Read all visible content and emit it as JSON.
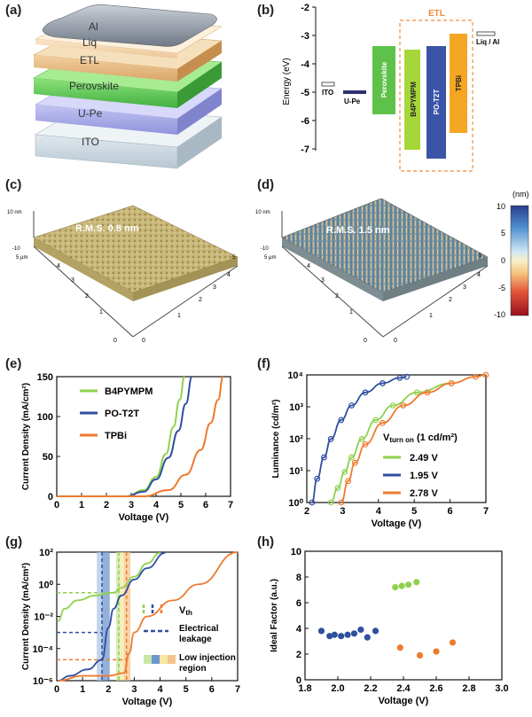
{
  "panel_labels": [
    "(a)",
    "(b)",
    "(c)",
    "(d)",
    "(e)",
    "(f)",
    "(g)",
    "(h)"
  ],
  "colors": {
    "green": "#8fd14f",
    "blue": "#2f4f9f",
    "orange": "#ee7a2e",
    "perovskite": "#5ec24a",
    "b4pympm": "#a6d73a",
    "pot2t": "#3a55a8",
    "tpbi": "#f5a623",
    "etl_box": "#f28c3a"
  },
  "panel_a": {
    "layers": [
      "Al",
      "Liq",
      "ETL",
      "Perovskite",
      "U-Pe",
      "ITO"
    ]
  },
  "panel_b": {
    "ylabel": "Energy (eV)",
    "yticks": [
      "-2",
      "-3",
      "-4",
      "-5",
      "-6",
      "-7"
    ],
    "etl_label": "ETL",
    "labels": {
      "ito": "ITO",
      "upe": "U-Pe",
      "perovskite": "Perovskite",
      "b4pympm": "B4PYMPM",
      "pot2t": "PO-T2T",
      "tpbi": "TPBi",
      "liq_al": "Liq / Al"
    }
  },
  "panel_c": {
    "rms": "R.M.S. 0.8 nm",
    "z_top": "10 nm",
    "z_bot": "-10",
    "x_ticks": [
      "0",
      "1",
      "2",
      "3",
      "4",
      "5 µm"
    ],
    "y_ticks": [
      "0",
      "1",
      "2",
      "3",
      "4",
      "5"
    ]
  },
  "panel_d": {
    "rms": "R.M.S. 1.5 nm",
    "z_top": "10 nm",
    "z_bot": "-10",
    "x_ticks": [
      "0",
      "1",
      "2",
      "3",
      "4",
      "5 µm"
    ],
    "y_ticks": [
      "0",
      "1",
      "2",
      "3",
      "4",
      "5"
    ]
  },
  "colorbar": {
    "unit": "(nm)",
    "ticks": [
      "10",
      "5",
      "0",
      "-5",
      "-10"
    ]
  },
  "chart_data": [
    {
      "panel": "e",
      "type": "line",
      "xlabel": "Voltage (V)",
      "ylabel": "Current Density (mA/cm²)",
      "xlim": [
        0,
        7
      ],
      "ylim": [
        0,
        155
      ],
      "xticks": [
        "0",
        "1",
        "2",
        "3",
        "4",
        "5",
        "6",
        "7"
      ],
      "yticks": [
        "0",
        "50",
        "100",
        "150"
      ],
      "series": [
        {
          "name": "B4PYMPM",
          "color": "#8fd14f",
          "x": [
            0,
            2.8,
            3.5,
            4.0,
            4.4,
            4.7,
            4.95,
            5.15
          ],
          "y": [
            0,
            0,
            8,
            25,
            55,
            90,
            125,
            155
          ]
        },
        {
          "name": "PO-T2T",
          "color": "#2f4f9f",
          "x": [
            0,
            2.8,
            3.5,
            4.0,
            4.5,
            4.9,
            5.2,
            5.45
          ],
          "y": [
            0,
            0,
            6,
            22,
            50,
            85,
            120,
            155
          ]
        },
        {
          "name": "TPBi",
          "color": "#ee7a2e",
          "x": [
            0,
            3.5,
            4.5,
            5.2,
            5.8,
            6.2,
            6.5,
            6.7
          ],
          "y": [
            0,
            0,
            8,
            28,
            60,
            95,
            125,
            155
          ]
        }
      ]
    },
    {
      "panel": "f",
      "type": "line",
      "xlabel": "Voltage (V)",
      "ylabel": "Luminance (cd/m²)",
      "yscale": "log",
      "xlim": [
        1.8,
        7
      ],
      "ylim": [
        1,
        15000
      ],
      "xticks": [
        "2",
        "3",
        "4",
        "5",
        "6",
        "7"
      ],
      "yticks": [
        "10⁰",
        "10¹",
        "10²",
        "10³",
        "10⁴"
      ],
      "legend_title": "V",
      "legend_title_sub": "turn on",
      "legend_title_rest": " (1 cd/m²)",
      "series": [
        {
          "name": "2.49 V",
          "color": "#8fd14f",
          "x": [
            2.5,
            2.7,
            2.9,
            3.1,
            3.4,
            3.8,
            4.3,
            5.0,
            6.0
          ],
          "y": [
            1,
            3,
            10,
            30,
            120,
            500,
            1500,
            4000,
            8000
          ]
        },
        {
          "name": "1.95 V",
          "color": "#2f4f9f",
          "x": [
            1.95,
            2.1,
            2.3,
            2.5,
            2.8,
            3.1,
            3.5,
            4.0,
            4.5,
            4.7
          ],
          "y": [
            1,
            6,
            30,
            120,
            500,
            1500,
            4000,
            8000,
            12000,
            13000
          ]
        },
        {
          "name": "2.78 V",
          "color": "#ee7a2e",
          "x": [
            2.8,
            3.0,
            3.2,
            3.5,
            4.0,
            4.6,
            5.3,
            6.0,
            6.7,
            7.0
          ],
          "y": [
            1,
            5,
            20,
            80,
            400,
            1500,
            4000,
            8000,
            13000,
            15000
          ]
        }
      ]
    },
    {
      "panel": "g",
      "type": "line",
      "xlabel": "Voltage (V)",
      "ylabel": "Current Density (mA/cm²)",
      "yscale": "log",
      "xlim": [
        0,
        7
      ],
      "ylim": [
        1e-06,
        100
      ],
      "xticks": [
        "0",
        "1",
        "2",
        "3",
        "4",
        "5",
        "6",
        "7"
      ],
      "yticks": [
        "10⁻⁶",
        "10⁻⁴",
        "10⁻²",
        "10⁰",
        "10²"
      ],
      "annotations": {
        "vth": "V",
        "vth_sub": "th",
        "leak": "Electrical\nleakage",
        "low": "Low injection\nregion"
      },
      "series": [
        {
          "name": "B4PYMPM",
          "color": "#8fd14f",
          "x": [
            0.05,
            0.3,
            0.8,
            1.5,
            2.2,
            2.5,
            3.0,
            3.5,
            4.0
          ],
          "y": [
            0.005,
            0.03,
            0.1,
            0.2,
            0.3,
            0.6,
            3,
            20,
            90
          ]
        },
        {
          "name": "PO-T2T",
          "color": "#2f4f9f",
          "x": [
            0.05,
            0.5,
            1.2,
            1.75,
            2.0,
            2.2,
            2.5,
            3.0,
            3.5,
            4.2
          ],
          "y": [
            1e-06,
            2e-06,
            5e-06,
            2e-05,
            0.002,
            0.03,
            0.2,
            2,
            10,
            90
          ]
        },
        {
          "name": "TPBi",
          "color": "#ee7a2e",
          "x": [
            0.05,
            1.0,
            2.0,
            2.6,
            2.8,
            3.0,
            3.5,
            4.5,
            5.5,
            7.0
          ],
          "y": [
            1e-06,
            2e-06,
            2e-06,
            3e-06,
            5e-05,
            0.001,
            0.01,
            0.1,
            1,
            100
          ]
        }
      ],
      "vth_lines": [
        {
          "color": "#2f4f9f",
          "x": 1.75,
          "y_h": 0.001
        },
        {
          "color": "#8fd14f",
          "x": 2.4,
          "y_h": 0.3
        },
        {
          "color": "#ee7a2e",
          "x": 2.7,
          "y_h": 2e-05
        }
      ]
    },
    {
      "panel": "h",
      "type": "scatter",
      "xlabel": "Voltage (V)",
      "ylabel": "Ideal Factor (a.u.)",
      "xlim": [
        1.8,
        3.0
      ],
      "ylim": [
        0,
        10
      ],
      "xticks": [
        "1.8",
        "2.0",
        "2.2",
        "2.4",
        "2.6",
        "2.8",
        "3.0"
      ],
      "yticks": [
        "0",
        "2",
        "4",
        "6",
        "8",
        "10"
      ],
      "series": [
        {
          "name": "B4PYMPM",
          "color": "#8fd14f",
          "x": [
            2.35,
            2.39,
            2.43,
            2.48
          ],
          "y": [
            7.2,
            7.3,
            7.4,
            7.6
          ]
        },
        {
          "name": "PO-T2T",
          "color": "#2f4f9f",
          "x": [
            1.9,
            1.95,
            1.98,
            2.02,
            2.06,
            2.1,
            2.14,
            2.18,
            2.23
          ],
          "y": [
            3.8,
            3.4,
            3.5,
            3.4,
            3.5,
            3.6,
            3.9,
            3.3,
            3.8
          ]
        },
        {
          "name": "TPBi",
          "color": "#ee7a2e",
          "x": [
            2.38,
            2.5,
            2.6,
            2.7
          ],
          "y": [
            2.5,
            1.9,
            2.2,
            2.9
          ]
        }
      ]
    }
  ]
}
